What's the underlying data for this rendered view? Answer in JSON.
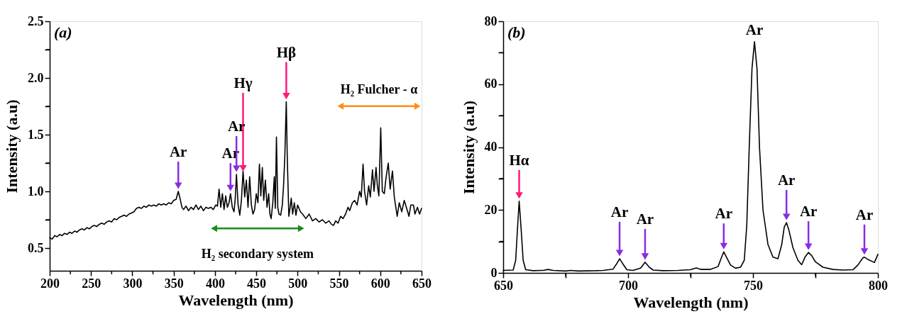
{
  "chart_data": [
    {
      "type": "line",
      "xlabel": "Wavelength (nm)",
      "ylabel": "Intensity (a.u)",
      "xlim": [
        200,
        650
      ],
      "ylim": [
        0.3,
        2.5
      ],
      "xticks": [
        200,
        {
          "value": 225,
          "label": null
        },
        250,
        {
          "value": 275,
          "label": null
        },
        300,
        {
          "value": 325,
          "label": null
        },
        350,
        {
          "value": 375,
          "label": null
        },
        400,
        {
          "value": 425,
          "label": null
        },
        450,
        {
          "value": 475,
          "label": null
        },
        500,
        {
          "value": 525,
          "label": null
        },
        550,
        {
          "value": 575,
          "label": null
        },
        600,
        {
          "value": 625,
          "label": null
        },
        650
      ],
      "yticks": [
        0.5,
        {
          "value": 0.75,
          "label": null
        },
        {
          "value": 1.0,
          "label": "1.0"
        },
        {
          "value": 1.25,
          "label": null
        },
        1.5,
        {
          "value": 1.75,
          "label": null
        },
        {
          "value": 2.0,
          "label": "2.0"
        },
        {
          "value": 2.25,
          "label": null
        },
        2.5
      ],
      "x": [
        200,
        203,
        206,
        209,
        212,
        215,
        218,
        221,
        224,
        227,
        230,
        233,
        236,
        239,
        242,
        245,
        248,
        251,
        254,
        257,
        260,
        263,
        266,
        269,
        272,
        275,
        278,
        281,
        284,
        287,
        290,
        293,
        296,
        299,
        302,
        305,
        308,
        311,
        314,
        317,
        320,
        323,
        326,
        329,
        332,
        335,
        338,
        341,
        344,
        347,
        350,
        353,
        355.6,
        358,
        360,
        362,
        365,
        368,
        371,
        374,
        377,
        380,
        383,
        386,
        389,
        392,
        395,
        398,
        401,
        403,
        405,
        407,
        409,
        411,
        413,
        415,
        417,
        418.8,
        421,
        423,
        424.5,
        426,
        428,
        430,
        432,
        434,
        436,
        438,
        440,
        442,
        444,
        446,
        448,
        450,
        452,
        453.8,
        455.5,
        457.3,
        459,
        461,
        463,
        465,
        466.5,
        468,
        470,
        471.8,
        473,
        474.4,
        476,
        477.5,
        479.5,
        481.5,
        483,
        484.5,
        486.3,
        487.5,
        489.4,
        491,
        492.3,
        494,
        496,
        498,
        500,
        503.4,
        506,
        510,
        514,
        518,
        522,
        526,
        530,
        534,
        538,
        541,
        543.6,
        546,
        549,
        552,
        555,
        558,
        561,
        563,
        566.3,
        569,
        572,
        575,
        577,
        579.2,
        581,
        583.5,
        586,
        588,
        590.6,
        592.5,
        594.9,
        596.5,
        598.3,
        600.6,
        602.5,
        604.9,
        607,
        609.7,
        612,
        614.8,
        617,
        620.5,
        623,
        626,
        629,
        632,
        634.8,
        637,
        640.2,
        642,
        645,
        647.6,
        650
      ],
      "series": [
        {
          "color": "#000000",
          "values": [
            0.59,
            0.58,
            0.61,
            0.6,
            0.62,
            0.61,
            0.63,
            0.62,
            0.64,
            0.63,
            0.65,
            0.64,
            0.66,
            0.67,
            0.66,
            0.68,
            0.67,
            0.69,
            0.7,
            0.69,
            0.71,
            0.72,
            0.71,
            0.73,
            0.74,
            0.73,
            0.76,
            0.75,
            0.77,
            0.78,
            0.79,
            0.78,
            0.8,
            0.81,
            0.82,
            0.85,
            0.86,
            0.85,
            0.87,
            0.86,
            0.88,
            0.87,
            0.88,
            0.87,
            0.89,
            0.88,
            0.89,
            0.88,
            0.9,
            0.89,
            0.92,
            0.93,
            1.0,
            0.93,
            0.86,
            0.84,
            0.87,
            0.83,
            0.86,
            0.84,
            0.88,
            0.84,
            0.87,
            0.83,
            0.86,
            0.85,
            0.86,
            0.84,
            0.88,
            0.87,
            1.02,
            0.86,
            0.98,
            0.84,
            0.96,
            0.86,
            0.9,
            0.98,
            0.86,
            0.82,
            0.93,
            1.15,
            0.88,
            0.79,
            0.92,
            1.18,
            0.95,
            1.1,
            0.86,
            1.13,
            0.88,
            0.8,
            0.84,
            0.98,
            0.9,
            1.24,
            0.96,
            1.21,
            0.92,
            1.1,
            0.86,
            0.98,
            0.8,
            0.76,
            0.9,
            1.13,
            0.85,
            1.48,
            0.86,
            0.8,
            0.79,
            0.88,
            1.05,
            1.3,
            1.79,
            1.3,
            0.78,
            0.86,
            0.94,
            0.8,
            0.9,
            0.79,
            0.88,
            0.82,
            0.8,
            0.76,
            0.8,
            0.74,
            0.76,
            0.73,
            0.75,
            0.72,
            0.74,
            0.71,
            0.7,
            0.74,
            0.72,
            0.78,
            0.76,
            0.8,
            0.86,
            0.83,
            0.9,
            0.92,
            0.88,
            1.0,
            0.95,
            1.24,
            1.0,
            0.88,
            1.05,
            0.95,
            1.19,
            1.0,
            1.21,
            1.05,
            0.96,
            1.56,
            1.0,
            0.98,
            1.12,
            1.25,
            1.02,
            1.18,
            0.95,
            0.78,
            0.9,
            0.82,
            0.92,
            0.85,
            0.78,
            0.88,
            0.88,
            0.8,
            0.86,
            0.8,
            0.85
          ]
        }
      ],
      "annotations": [
        "(a)",
        "H₂ secondary system",
        "H₂ Fulcher - α",
        "Hγ",
        {
          "text": "Ar",
          "x": 355.6,
          "y": 1.0
        },
        {
          "text": "Ar",
          "x": 418.8,
          "y": 0.98
        },
        {
          "text": "Ar",
          "x": 426,
          "y": 1.15
        },
        {
          "text": "Hβ",
          "x": 486.3,
          "y": 1.79
        }
      ]
    },
    {
      "type": "line",
      "xlabel": "Wavelength (nm)",
      "ylabel": "Intensity (a.u)",
      "xlim": [
        650,
        800
      ],
      "ylim": [
        0,
        80
      ],
      "xticks": [
        650,
        {
          "value": 675,
          "label": null
        },
        700,
        {
          "value": 725,
          "label": null
        },
        750,
        {
          "value": 775,
          "label": null
        },
        800
      ],
      "yticks": [
        0,
        {
          "value": 10,
          "label": null
        },
        20,
        {
          "value": 30,
          "label": null
        },
        40,
        {
          "value": 50,
          "label": null
        },
        60,
        {
          "value": 70,
          "label": null
        },
        80
      ],
      "x": [
        650,
        654,
        655,
        655.8,
        656.4,
        657.1,
        658,
        659,
        662,
        666,
        668,
        670,
        675,
        677,
        680,
        687,
        690,
        694,
        695.5,
        696.6,
        697.8,
        699.5,
        702,
        705,
        706.8,
        708.5,
        710,
        714,
        720,
        725,
        727.3,
        729,
        733,
        736,
        737.2,
        738.3,
        739.5,
        741,
        743,
        745,
        746.5,
        747.5,
        748.5,
        749.6,
        750.6,
        751.6,
        752.6,
        754,
        756,
        758,
        760,
        761.5,
        762.5,
        763.4,
        764.4,
        766,
        768,
        769.5,
        770.8,
        772.2,
        773.5,
        775,
        778,
        782,
        786,
        790,
        792,
        794,
        794.6,
        796,
        798.6,
        800
      ],
      "series": [
        {
          "color": "#000000",
          "values": [
            0.8,
            0.9,
            4,
            15,
            22.8,
            15,
            4,
            1,
            0.7,
            0.8,
            1.1,
            0.8,
            0.6,
            0.8,
            0.6,
            0.7,
            0.8,
            1.2,
            3,
            4.5,
            3,
            1,
            0.8,
            1.5,
            3.4,
            1.8,
            0.9,
            0.7,
            0.8,
            1,
            1.6,
            1.1,
            1.1,
            2,
            4.5,
            6.7,
            4.8,
            2.5,
            1.5,
            1.8,
            4,
            15,
            40,
            65,
            73.5,
            65,
            40,
            20,
            9,
            5,
            4.5,
            9,
            14.5,
            16,
            13.5,
            8,
            4,
            2.6,
            5,
            6.5,
            5.5,
            3.5,
            1.8,
            1.1,
            0.9,
            1,
            2.5,
            4.8,
            5,
            4.3,
            3.3,
            5.9
          ]
        }
      ],
      "annotations": [
        "(b)",
        {
          "text": "Hα",
          "x": 656.4,
          "y": 22.8
        },
        {
          "text": "Ar",
          "x": 696.6,
          "y": 4.5
        },
        {
          "text": "Ar",
          "x": 706.8,
          "y": 3.4
        },
        {
          "text": "Ar",
          "x": 738.3,
          "y": 6.7
        },
        {
          "text": "Ar",
          "x": 750.6,
          "y": 73.5
        },
        {
          "text": "Ar",
          "x": 763.4,
          "y": 16
        },
        {
          "text": "Ar",
          "x": 772.2,
          "y": 6.5
        },
        {
          "text": "Ar",
          "x": 794.6,
          "y": 5
        }
      ]
    }
  ]
}
